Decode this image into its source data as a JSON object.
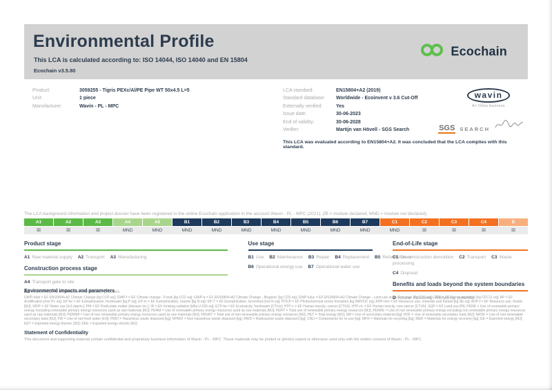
{
  "colors": {
    "navy": "#2d3c4e",
    "label_gray": "#a9a9a9",
    "band_gray": "#d2d2d2",
    "row_gray": "#ebebeb",
    "green": "#5cb947",
    "light_green": "#a8d58b",
    "table_navy": "#1d3a5c",
    "orange": "#f37021",
    "light_orange": "#f8ae7d",
    "logo_green": "#5cbf4b"
  },
  "header": {
    "title": "Environmental Profile",
    "subtitle": "This LCA is calculated according to: ISO 14044, ISO 14040 and EN 15804",
    "version": "Ecochain v3.5.80",
    "brand": "Ecochain"
  },
  "product_info": [
    {
      "label": "Product:",
      "value": "3059255 - Tigris PEXc/Al/PE Pipe WT 50x4.5 L=5"
    },
    {
      "label": "Unit:",
      "value": "1 piece"
    },
    {
      "label": "Manufacturer:",
      "value": "Wavin - PL - MPC"
    }
  ],
  "lca_info": [
    {
      "label": "LCA standard:",
      "value": "EN15804+A2 (2019)"
    },
    {
      "label": "Standard database:",
      "value": "Worldwide - Ecoinvent v 3.6 Cut-Off"
    },
    {
      "label": "Externally verified:",
      "value": "Yes"
    },
    {
      "label": "Issue date:",
      "value": "30-06-2023"
    },
    {
      "label": "End of validity:",
      "value": "30-06-2028"
    },
    {
      "label": "Verifier:",
      "value": "Martijn van Hövell - SGS Search"
    }
  ],
  "evaluation_note": "This LCA was evaluated according to EN15804+A2. It was concluded that the LCA complies with this standard.",
  "logos": {
    "wavin": "wavin",
    "wavin_sub": "An Orbia business",
    "sgs": "SGS",
    "search": "SEARCH"
  },
  "registration_note": "The LCA background information and project dossier have been registered in the online Ecochain application in the account Wavin - PL - MPC (2021). (☒ = module declared, MND = module not declared).",
  "module_table": {
    "columns": [
      {
        "id": "A1",
        "status": "☒",
        "group": "product"
      },
      {
        "id": "A2",
        "status": "☒",
        "group": "product"
      },
      {
        "id": "A3",
        "status": "☒",
        "group": "product"
      },
      {
        "id": "A4",
        "status": "MND",
        "group": "construction"
      },
      {
        "id": "A5",
        "status": "MND",
        "group": "construction"
      },
      {
        "id": "B1",
        "status": "MND",
        "group": "use"
      },
      {
        "id": "B2",
        "status": "MND",
        "group": "use"
      },
      {
        "id": "B3",
        "status": "MND",
        "group": "use"
      },
      {
        "id": "B4",
        "status": "MND",
        "group": "use"
      },
      {
        "id": "B5",
        "status": "MND",
        "group": "use"
      },
      {
        "id": "B6",
        "status": "MND",
        "group": "use"
      },
      {
        "id": "B7",
        "status": "MND",
        "group": "use"
      },
      {
        "id": "C1",
        "status": "MND",
        "group": "eol"
      },
      {
        "id": "C2",
        "status": "☒",
        "group": "eol"
      },
      {
        "id": "C3",
        "status": "☒",
        "group": "eol"
      },
      {
        "id": "C4",
        "status": "☒",
        "group": "eol"
      },
      {
        "id": "D",
        "status": "☒",
        "group": "benefits"
      }
    ]
  },
  "stage_groups": [
    {
      "heading": "Product stage",
      "color_key": "green",
      "lines": [
        [
          {
            "code": "A1",
            "label": "Raw material supply"
          },
          {
            "code": "A2",
            "label": "Transport"
          },
          {
            "code": "A3",
            "label": "Manufacturing"
          }
        ]
      ]
    },
    {
      "heading": "Construction process stage",
      "color_key": "light_green",
      "lines": [
        [
          {
            "code": "A4",
            "label": "Transport gate to site"
          }
        ],
        [
          {
            "code": "A5",
            "label": "Assembly / Construction installation process"
          }
        ]
      ]
    },
    {
      "heading": "Use stage",
      "color_key": "table_navy",
      "lines": [
        [
          {
            "code": "B1",
            "label": "Use"
          },
          {
            "code": "B2",
            "label": "Maintenance"
          },
          {
            "code": "B3",
            "label": "Repair"
          },
          {
            "code": "B4",
            "label": "Replacement"
          },
          {
            "code": "B5",
            "label": "Refurbishment"
          }
        ],
        [
          {
            "code": "B6",
            "label": "Operational energy use"
          },
          {
            "code": "B7",
            "label": "Operational water use"
          }
        ]
      ]
    },
    {
      "heading": "End-of-Life stage",
      "color_key": "orange",
      "lines": [
        [
          {
            "code": "C1",
            "label": "De-construction demolition"
          },
          {
            "code": "C2",
            "label": "Transport"
          },
          {
            "code": "C3",
            "label": "Waste processing"
          }
        ],
        [
          {
            "code": "C4",
            "label": "Disposal"
          }
        ]
      ]
    },
    {
      "heading": "Benefits and loads beyond the system boundaries",
      "color_key": "orange",
      "lines": [
        [
          {
            "code": "D",
            "label": "Reuse- Recovery- Recycling- potential"
          }
        ]
      ]
    }
  ],
  "impacts": {
    "heading": "Environmental impacts and parameters",
    "text": "GWP-total = EF EN15804+A2 Climate Change [kg CO2 eq]; GWP-f = EF Climate change - Fossil [kg CO2 eq]; GWP-b = EF EN15804+A2 Climate Change - Biogenic [kg CO2 eq]; GWP-luluc = EF EN15804+A2 Climate Change - Land use and LU change [kg CO2 eq]; ODP = EF Ozone depletion [kg CFC11 eq]; AP = EF Acidification [mol H+ eq]; EP-fw = EF Eutrophication, freshwater [kg P eq]; EP-m = EF Eutrophication, marine [kg N eq]; EP-T = EF Eutrophication, terrestrial [mol N eq]; POCP = EF Photochemical ozone formation [kg NMVOC eq]; ADP-mm = EF Resource use, minerals and metals [kg Sb eq]; ADP-f = EF Resource use, fossils [MJ]; WDP = EF Water use [m3 depriv.]; PM = EF Particulate matter [disease inc.]; IR = EF Ionising radiation [kBq U-235 eq]; ETP-fw = EF Ecotoxicity, freshwater [CTUe]; HTP-c = EF Human toxicity, cancer [CTUh]; HTP-nc = EF Human toxicity, non-cancer [CTUh]; SQP = EF Land use [Pt]; PERE = Use of renewable primary energy excluding renewable primary energy resources used as raw materials [MJ]; PERM = Use of renewable primary energy resources used as raw materials [MJ]; PERT = Total use of renewable primary energy resources [MJ]; PENRE = Use of non renewable primary energy excluding non renewable primary energy resources used as raw materials [MJ]; PENRM = Use of non renewable primary energy resources used as raw materials [MJ]; PENRT = Total use of non-renewable primary energy resources [MJ]; PET = Total energy [MJ]; SM = Use of secondary material [kg]; RSF = Use of renewable secondary fuels [MJ]; NRSF = Use of non-renewable secondary fuels [MJ]; FW = Use of net fresh water [m3]; HWD = Hazardous waste disposed [kg]; NHWD = Non-hazardous waste disposed [kg]; RWD = Radioactive waste disposed [kg]; CRU = Components for re-use [kg]; MFR = Materials for recycling [kg]; MER = Materials for energy recovery [kg]; EE = Exported energy [MJ]; EET = Exported energy thermic [MJ]; EEE = Exported energy electric [MJ]"
  },
  "confidentiality": {
    "heading": "Statement of Confidentiality",
    "text": "This document and supporting material contain confidential and proprietary business information of Wavin - PL - MPC. These materials may be printed or (photo) copied or otherwise used only with the written consent of Wavin - PL - MPC."
  }
}
